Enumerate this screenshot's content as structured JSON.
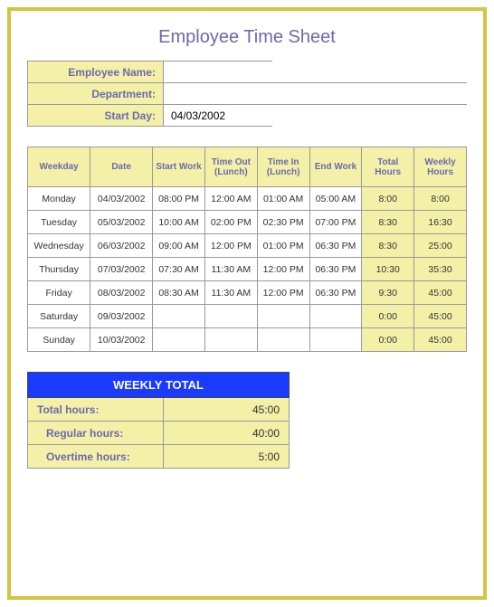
{
  "title": "Employee Time Sheet",
  "info": {
    "name_label": "Employee Name:",
    "name_value": "",
    "dept_label": "Department:",
    "dept_value": "",
    "start_day_label": "Start Day:",
    "start_day_value": "04/03/2002"
  },
  "headers": {
    "weekday": "Weekday",
    "date": "Date",
    "start_work": "Start Work",
    "time_out_lunch": "Time Out (Lunch)",
    "time_in_lunch": "Time In (Lunch)",
    "end_work": "End Work",
    "total_hours": "Total Hours",
    "weekly_hours": "Weekly Hours"
  },
  "rows": [
    {
      "weekday": "Monday",
      "date": "04/03/2002",
      "start": "08:00 PM",
      "out": "12:00 AM",
      "in": "01:00 AM",
      "end": "05:00 AM",
      "total": "8:00",
      "weekly": "8:00"
    },
    {
      "weekday": "Tuesday",
      "date": "05/03/2002",
      "start": "10:00 AM",
      "out": "02:00 PM",
      "in": "02:30 PM",
      "end": "07:00 PM",
      "total": "8:30",
      "weekly": "16:30"
    },
    {
      "weekday": "Wednesday",
      "date": "06/03/2002",
      "start": "09:00 AM",
      "out": "12:00 PM",
      "in": "01:00 PM",
      "end": "06:30 PM",
      "total": "8:30",
      "weekly": "25:00"
    },
    {
      "weekday": "Thursday",
      "date": "07/03/2002",
      "start": "07:30 AM",
      "out": "11:30 AM",
      "in": "12:00 PM",
      "end": "06:30 PM",
      "total": "10:30",
      "weekly": "35:30"
    },
    {
      "weekday": "Friday",
      "date": "08/03/2002",
      "start": "08:30 AM",
      "out": "11:30 AM",
      "in": "12:00 PM",
      "end": "06:30 PM",
      "total": "9:30",
      "weekly": "45:00"
    },
    {
      "weekday": "Saturday",
      "date": "09/03/2002",
      "start": "",
      "out": "",
      "in": "",
      "end": "",
      "total": "0:00",
      "weekly": "45:00"
    },
    {
      "weekday": "Sunday",
      "date": "10/03/2002",
      "start": "",
      "out": "",
      "in": "",
      "end": "",
      "total": "0:00",
      "weekly": "45:00"
    }
  ],
  "summary": {
    "header": "WEEKLY TOTAL",
    "total_label": "Total hours:",
    "total_value": "45:00",
    "regular_label": "Regular hours:",
    "regular_value": "40:00",
    "overtime_label": "Overtime hours:",
    "overtime_value": "5:00"
  },
  "colors": {
    "frame_border": "#d4c441",
    "header_bg": "#f4f0a8",
    "header_text": "#6a6aae",
    "summary_header_bg": "#1a3aff",
    "cell_border": "#999999"
  }
}
